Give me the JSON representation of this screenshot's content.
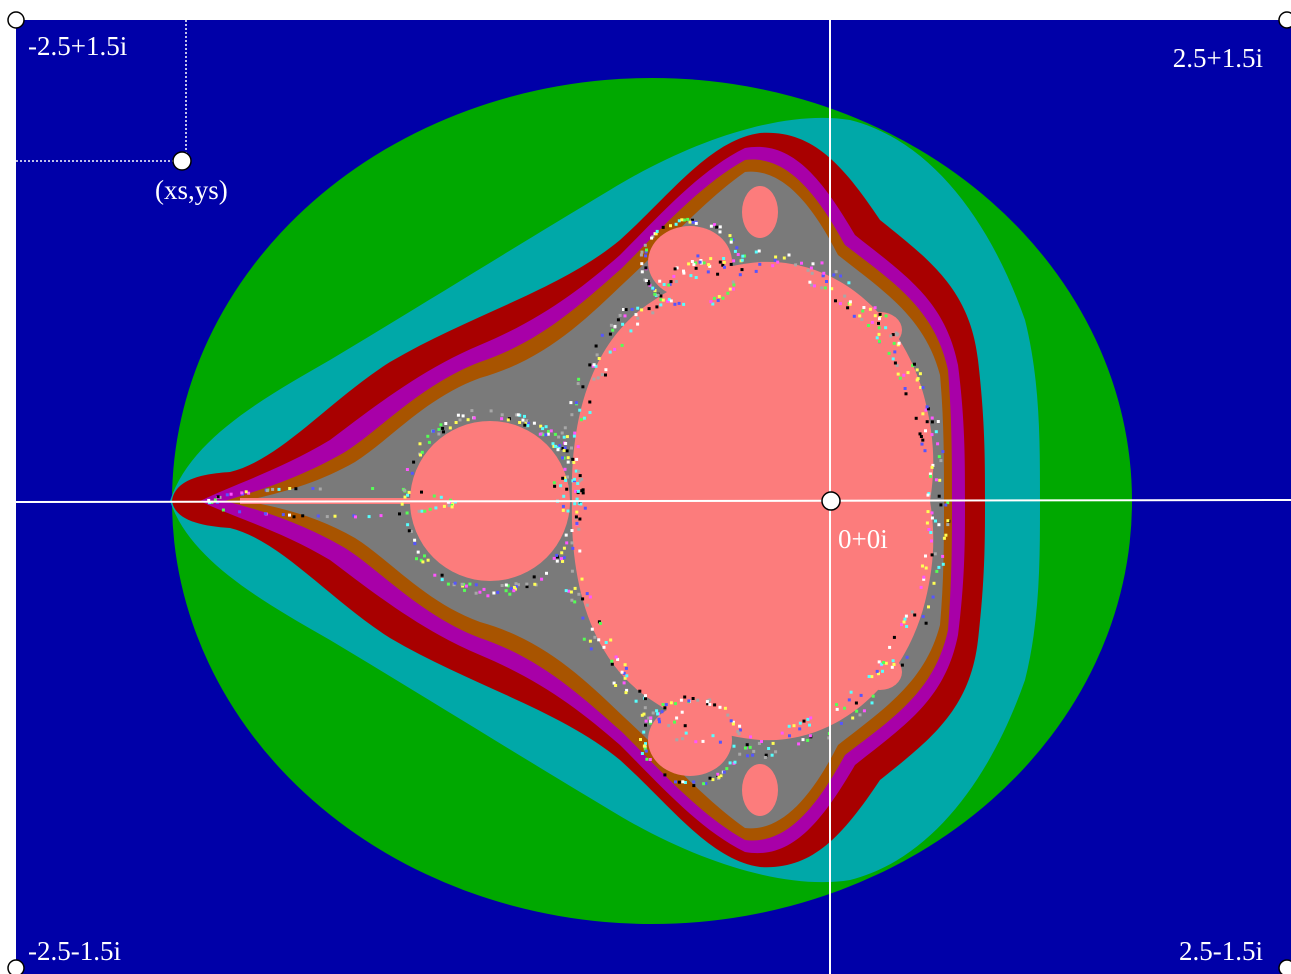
{
  "corners": {
    "top_left": "-2.5+1.5i",
    "top_right": "2.5+1.5i",
    "bottom_left": "-2.5-1.5i",
    "bottom_right": "2.5-1.5i"
  },
  "origin_label": "0+0i",
  "start_point_label": "(xs,ys)",
  "colors": {
    "background": "#0000a8",
    "green": "#00a800",
    "cyan": "#00a8a8",
    "red": "#a80000",
    "magenta": "#a800a8",
    "brown": "#a85400",
    "gray": "#7a7a7a",
    "set": "#fc7c7c",
    "axis": "#ffffff"
  }
}
